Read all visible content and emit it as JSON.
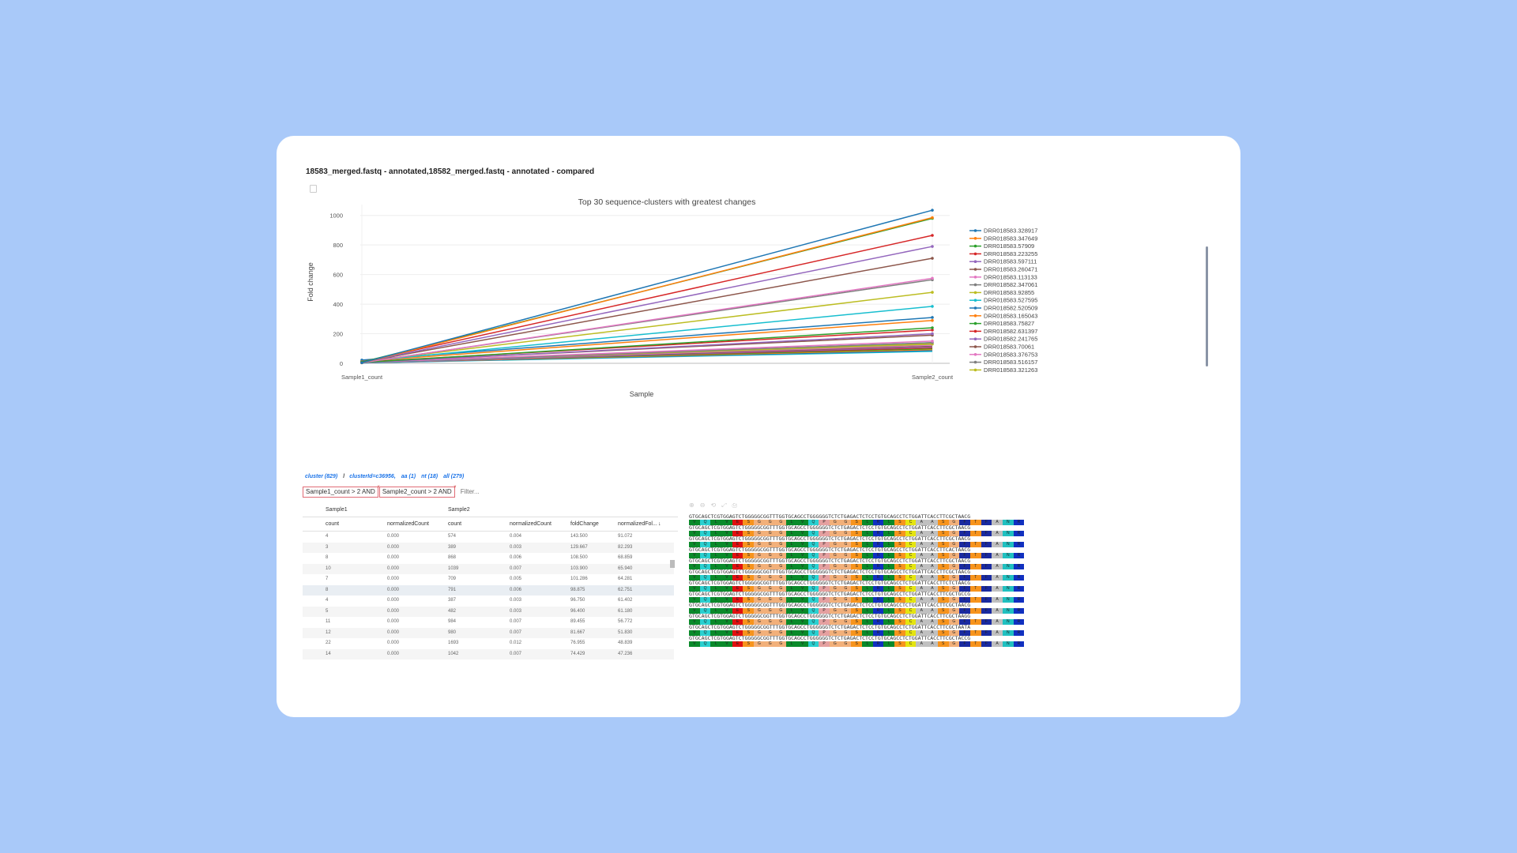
{
  "window": {
    "title": "18583_merged.fastq - annotated,18582_merged.fastq - annotated - compared"
  },
  "chart_data": {
    "type": "line",
    "title": "Top 30 sequence-clusters with greatest changes",
    "xlabel": "Sample",
    "ylabel": "Fold change",
    "categories": [
      "Sample1_count",
      "Sample2_count"
    ],
    "ylim": [
      0,
      1100
    ],
    "yticks": [
      0,
      200,
      400,
      600,
      800,
      1000
    ],
    "grid": true,
    "legend": "right",
    "series": [
      {
        "name": "DRR018583.328917",
        "color": "#1f77b4",
        "values": [
          4,
          1035
        ]
      },
      {
        "name": "DRR018583.347649",
        "color": "#ff7f0e",
        "values": [
          3,
          985
        ]
      },
      {
        "name": "DRR018583.57909",
        "color": "#2ca02c",
        "values": [
          8,
          980
        ]
      },
      {
        "name": "DRR018583.223255",
        "color": "#d62728",
        "values": [
          10,
          865
        ]
      },
      {
        "name": "DRR018583.597111",
        "color": "#9467bd",
        "values": [
          7,
          790
        ]
      },
      {
        "name": "DRR018583.260471",
        "color": "#8c564b",
        "values": [
          8,
          710
        ]
      },
      {
        "name": "DRR018583.113133",
        "color": "#e377c2",
        "values": [
          4,
          575
        ]
      },
      {
        "name": "DRR018582.347061",
        "color": "#7f7f7f",
        "values": [
          5,
          565
        ]
      },
      {
        "name": "DRR018583.92855",
        "color": "#bcbd22",
        "values": [
          11,
          480
        ]
      },
      {
        "name": "DRR018583.527595",
        "color": "#17becf",
        "values": [
          12,
          385
        ]
      },
      {
        "name": "DRR018582.520509",
        "color": "#1f77b4",
        "values": [
          22,
          310
        ]
      },
      {
        "name": "DRR018583.165043",
        "color": "#ff7f0e",
        "values": [
          14,
          290
        ]
      },
      {
        "name": "DRR018583.75827",
        "color": "#2ca02c",
        "values": [
          6,
          240
        ]
      },
      {
        "name": "DRR018582.631397",
        "color": "#d62728",
        "values": [
          9,
          225
        ]
      },
      {
        "name": "DRR018582.241765",
        "color": "#9467bd",
        "values": [
          5,
          200
        ]
      },
      {
        "name": "DRR018583.70061",
        "color": "#8c564b",
        "values": [
          7,
          190
        ]
      },
      {
        "name": "DRR018583.376753",
        "color": "#e377c2",
        "values": [
          6,
          150
        ]
      },
      {
        "name": "DRR018583.516157",
        "color": "#7f7f7f",
        "values": [
          4,
          140
        ]
      },
      {
        "name": "DRR018583.321263",
        "color": "#bcbd22",
        "values": [
          8,
          130
        ]
      }
    ],
    "extra_series_colors": [
      "#17becf",
      "#1f77b4",
      "#ff7f0e",
      "#2ca02c",
      "#d62728",
      "#9467bd",
      "#8c564b",
      "#e377c2",
      "#7f7f7f",
      "#bcbd22",
      "#17becf"
    ]
  },
  "breadcrumb": {
    "items": [
      "cluster (829)",
      "clusterId=c36956,",
      "aa (1)",
      "nt (18)",
      "all (279)"
    ],
    "separator": "/"
  },
  "filters": {
    "chips": [
      "Sample1_count > 2 AND",
      "Sample2_count > 2 AND"
    ],
    "chip_remove": "×",
    "input_placeholder": "Filter..."
  },
  "table": {
    "group_headers": [
      "Sample1",
      "Sample2"
    ],
    "columns": [
      "count",
      "normalizedCount",
      "count",
      "normalizedCount",
      "foldChange",
      "normalizedFol..."
    ],
    "sort_icon": "↓",
    "rows": [
      [
        "4",
        "0.000",
        "574",
        "0.004",
        "143.500",
        "91.072"
      ],
      [
        "3",
        "0.000",
        "389",
        "0.003",
        "129.667",
        "82.293"
      ],
      [
        "8",
        "0.000",
        "868",
        "0.006",
        "108.500",
        "68.859"
      ],
      [
        "10",
        "0.000",
        "1039",
        "0.007",
        "103.900",
        "65.940"
      ],
      [
        "7",
        "0.000",
        "709",
        "0.005",
        "101.286",
        "64.281"
      ],
      [
        "8",
        "0.000",
        "791",
        "0.006",
        "98.875",
        "62.751"
      ],
      [
        "4",
        "0.000",
        "387",
        "0.003",
        "96.750",
        "61.402"
      ],
      [
        "5",
        "0.000",
        "482",
        "0.003",
        "96.400",
        "61.180"
      ],
      [
        "11",
        "0.000",
        "984",
        "0.007",
        "89.455",
        "56.772"
      ],
      [
        "12",
        "0.000",
        "980",
        "0.007",
        "81.667",
        "51.830"
      ],
      [
        "22",
        "0.000",
        "1693",
        "0.012",
        "76.955",
        "48.839"
      ],
      [
        "14",
        "0.000",
        "1042",
        "0.007",
        "74.429",
        "47.236"
      ]
    ]
  },
  "msa": {
    "toolbar": [
      "zoom-in-icon",
      "zoom-out-icon",
      "reset-zoom-icon",
      "fit-icon",
      "export-icon"
    ],
    "toolbar_glyphs": [
      "⊕",
      "⊖",
      "⟲",
      "⤢",
      "⎙"
    ],
    "nt_sequences": [
      "GTGCAGCTCGTGGAGTCTGGGGGCGGTTTGGTGCAGCCTGGGGGGTCTCTGAGACTCTCCTGTGCAGCCTCTGGATTCACCTTCGCTAACG",
      "GTGCAGCTCGTGGAGTCTGGGGGCGGTTTGGTGCAGCCTGGGGGGTCTCTGAGACTCTCCTGTGCAGCCTCTGGATTCACCTTCGCTAACG",
      "GTGCAGCTCGTGGAGTCTGGGGGCGGTTTGGTGCAGCCTGGGGGGTCTCTGAGACTCTCCTGTGCAGCCTCTGGATTCACCTTCGCTAACG",
      "GTGCAGCTCGTGGAGTCTGGGGGCGGTTTGGTGCAGCCTGGGGGGTCTCTGAGACTCTCCTGTGCAGCCTCTGGATTCACCTTCACTAACG",
      "GTGCAGCTCGTGGAGTCTGGGGGCGGTTTGGTGCAGCCTGGGGGGTCTCTGAGACTCTCCTGTGCAGCCTCTGGATTCACCTTCGCTAACG",
      "GTGCAGCTCGTGGAGTCTGGGGGCGGTTTGGTGCAGCCTGGGGGGTCTCTGAGACTCTCCTGTGCAGCCTCTGGATTCACCTTCGCTAACG",
      "GTGCAGCTCGTGGAGTCTGGGGGCGGTTTGGTGCAGCCTGGGGGGTCTCTGAGACTCTCCTGTGCAGCCTCTGGATTCACCTTCTCTAACG",
      "GTGCAGCTCGTGGAGTCTGGGGGCGGTTTGGTGCAGCCTGGGGGGTCTCTGAGACTCTCCTGTGCAGCCTCTGGATTCACCTTCGCTGCCG",
      "GTGCAGCTCGTGGAGTCTGGGGGCGGTTTGGTGCAGCCTGGGGGGTCTCTGAGACTCTCCTGTGCAGCCTCTGGATTCACCTTCGCTAACG",
      "GTGCAGCTCGTGGAGTCTGGGGGCGGTTTGGTGCAGCCTGGGGGGTCTCTGAGACTCTCCTGTGCAGCCTCTGGATTCACCTTCGCTAAGG",
      "GTGCAGCTCGTGGAGTCTGGGGGCGGTTTGGTGCAGCCTGGGGGGTCTCTGAGACTCTCCTGTGCAGCCTCTGGATTCACCTTCGCTAATA",
      "GTGCAGCTCGTGGAGTCTGGGGGCGGTTTGGTGCAGCCTGGGGGGTCTCTGAGACTCTCCTGTGCAGCCTCTGGATTCACCTTCGCTACCG"
    ],
    "aa_sequence": [
      "V",
      "Q",
      "L",
      "V",
      "E",
      "S",
      "G",
      "G",
      "G",
      "L",
      "V",
      "Q",
      "P",
      "G",
      "G",
      "S",
      "L",
      "R",
      "L",
      "S",
      "C",
      "A",
      "A",
      "S",
      "G",
      "F",
      "T",
      "F",
      "A",
      "N",
      "R"
    ],
    "aa_colors": {
      "V": "#0a8a2a",
      "Q": "#2ad0d0",
      "L": "#0a8a2a",
      "E": "#e01010",
      "S": "#f7941d",
      "G": "#f2b07a",
      "P": "#e5a0a0",
      "R": "#1030c0",
      "C": "#e5e510",
      "A": "#c0c0c0",
      "F": "#1a2aa0",
      "T": "#f7941d",
      "N": "#20c0c0"
    }
  }
}
